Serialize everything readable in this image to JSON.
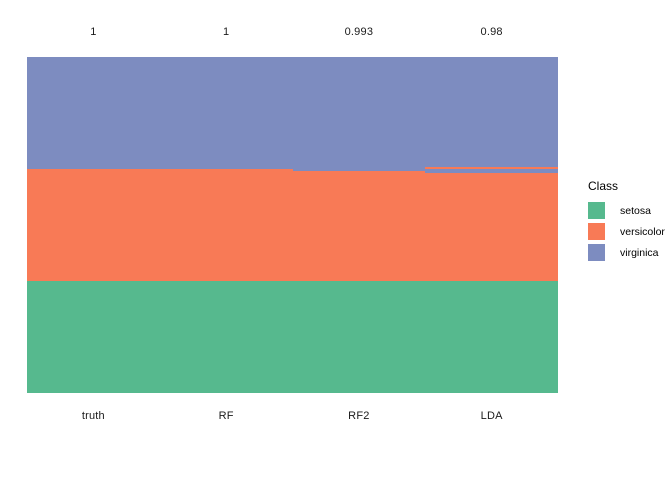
{
  "chart_data": {
    "type": "heatmap",
    "subtype": "stacked-classification-raster",
    "title": "",
    "categories": [
      "truth",
      "RF",
      "RF2",
      "LDA"
    ],
    "accuracy_labels": [
      "1",
      "1",
      "0.993",
      "0.98"
    ],
    "classes": [
      "setosa",
      "versicolor",
      "virginica"
    ],
    "class_colors": {
      "setosa": "#56B98E",
      "versicolor": "#F87A56",
      "virginica": "#7D8CC0"
    },
    "total_samples": 150,
    "segment_order": "top-to-bottom",
    "columns": [
      {
        "model": "truth",
        "accuracy_label": "1",
        "segments": [
          {
            "class": "virginica",
            "n": 50
          },
          {
            "class": "versicolor",
            "n": 50
          },
          {
            "class": "setosa",
            "n": 50
          }
        ]
      },
      {
        "model": "RF",
        "accuracy_label": "1",
        "segments": [
          {
            "class": "virginica",
            "n": 50
          },
          {
            "class": "versicolor",
            "n": 50
          },
          {
            "class": "setosa",
            "n": 50
          }
        ]
      },
      {
        "model": "RF2",
        "accuracy_label": "0.993",
        "segments": [
          {
            "class": "virginica",
            "n": 51
          },
          {
            "class": "versicolor",
            "n": 49
          },
          {
            "class": "setosa",
            "n": 50
          }
        ]
      },
      {
        "model": "LDA",
        "accuracy_label": "0.98",
        "segments": [
          {
            "class": "virginica",
            "n": 49
          },
          {
            "class": "versicolor",
            "n": 1
          },
          {
            "class": "virginica",
            "n": 2
          },
          {
            "class": "versicolor",
            "n": 48
          },
          {
            "class": "setosa",
            "n": 50
          }
        ]
      }
    ],
    "legend": {
      "title": "Class",
      "position": "right",
      "entries": [
        {
          "label": "setosa",
          "color": "#56B98E"
        },
        {
          "label": "versicolor",
          "color": "#F87A56"
        },
        {
          "label": "virginica",
          "color": "#7D8CC0"
        }
      ]
    },
    "grid": false,
    "background": "#ffffff"
  }
}
